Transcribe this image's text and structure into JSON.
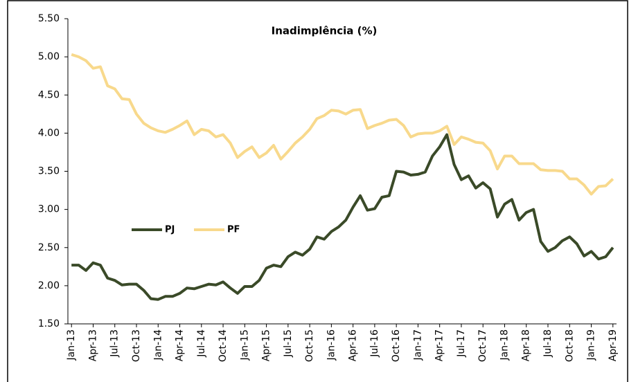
{
  "chart_data": {
    "type": "line",
    "title": "Inadimplência (%)",
    "categories": [
      "Jan-13",
      null,
      null,
      "Apr-13",
      null,
      null,
      "Jul-13",
      null,
      null,
      "Oct-13",
      null,
      null,
      "Jan-14",
      null,
      null,
      "Apr-14",
      null,
      null,
      "Jul-14",
      null,
      null,
      "Oct-14",
      null,
      null,
      "Jan-15",
      null,
      null,
      "Apr-15",
      null,
      null,
      "Jul-15",
      null,
      null,
      "Oct-15",
      null,
      null,
      "Jan-16",
      null,
      null,
      "Apr-16",
      null,
      null,
      "Jul-16",
      null,
      null,
      "Oct-16",
      null,
      null,
      "Jan-17",
      null,
      null,
      "Apr-17",
      null,
      null,
      "Jul-17",
      null,
      null,
      "Oct-17",
      null,
      null,
      "Jan-18",
      null,
      null,
      "Apr-18",
      null,
      null,
      "Jul-18",
      null,
      null,
      "Oct-18",
      null,
      null,
      "Jan-19",
      null,
      null,
      "Apr-19"
    ],
    "series": [
      {
        "name": "PJ",
        "color": "#3a4a28",
        "values": [
          2.27,
          2.27,
          2.2,
          2.3,
          2.27,
          2.1,
          2.07,
          2.01,
          2.02,
          2.02,
          1.94,
          1.83,
          1.82,
          1.86,
          1.86,
          1.9,
          1.97,
          1.96,
          1.99,
          2.02,
          2.01,
          2.05,
          1.97,
          1.9,
          1.99,
          1.99,
          2.07,
          2.23,
          2.27,
          2.25,
          2.38,
          2.44,
          2.4,
          2.48,
          2.64,
          2.61,
          2.71,
          2.77,
          2.86,
          3.03,
          3.18,
          2.99,
          3.01,
          3.16,
          3.18,
          3.5,
          3.49,
          3.45,
          3.46,
          3.49,
          3.7,
          3.82,
          3.98,
          3.59,
          3.39,
          3.44,
          3.28,
          3.35,
          3.27,
          2.9,
          3.07,
          3.13,
          2.86,
          2.96,
          3.0,
          2.58,
          2.45,
          2.5,
          2.59,
          2.64,
          2.55,
          2.39,
          2.45,
          2.35,
          2.38,
          2.5
        ]
      },
      {
        "name": "PF",
        "color": "#f8d98c",
        "values": [
          5.03,
          5.0,
          4.95,
          4.85,
          4.87,
          4.62,
          4.58,
          4.45,
          4.44,
          4.25,
          4.13,
          4.07,
          4.03,
          4.01,
          4.05,
          4.1,
          4.16,
          3.98,
          4.05,
          4.03,
          3.95,
          3.98,
          3.87,
          3.68,
          3.76,
          3.82,
          3.68,
          3.74,
          3.84,
          3.66,
          3.76,
          3.87,
          3.95,
          4.05,
          4.19,
          4.23,
          4.3,
          4.29,
          4.25,
          4.3,
          4.31,
          4.06,
          4.1,
          4.13,
          4.17,
          4.18,
          4.1,
          3.95,
          3.99,
          4.0,
          4.0,
          4.03,
          4.09,
          3.85,
          3.95,
          3.92,
          3.88,
          3.87,
          3.77,
          3.53,
          3.7,
          3.7,
          3.6,
          3.6,
          3.6,
          3.52,
          3.51,
          3.51,
          3.5,
          3.4,
          3.4,
          3.32,
          3.2,
          3.3,
          3.31,
          3.4
        ]
      }
    ],
    "ylim": [
      1.5,
      5.5
    ],
    "yticks": [
      {
        "value": 1.5,
        "label": "1.50"
      },
      {
        "value": 2,
        "label": "2.00"
      },
      {
        "value": 2.5,
        "label": "2.50"
      },
      {
        "value": 3,
        "label": "3.00"
      },
      {
        "value": 3.5,
        "label": "3.50"
      },
      {
        "value": 4,
        "label": "4.00"
      },
      {
        "value": 4.5,
        "label": "4.50"
      },
      {
        "value": 5,
        "label": "5.00"
      },
      {
        "value": 5.5,
        "label": "5.50"
      }
    ],
    "grid": false,
    "legend": "left"
  }
}
